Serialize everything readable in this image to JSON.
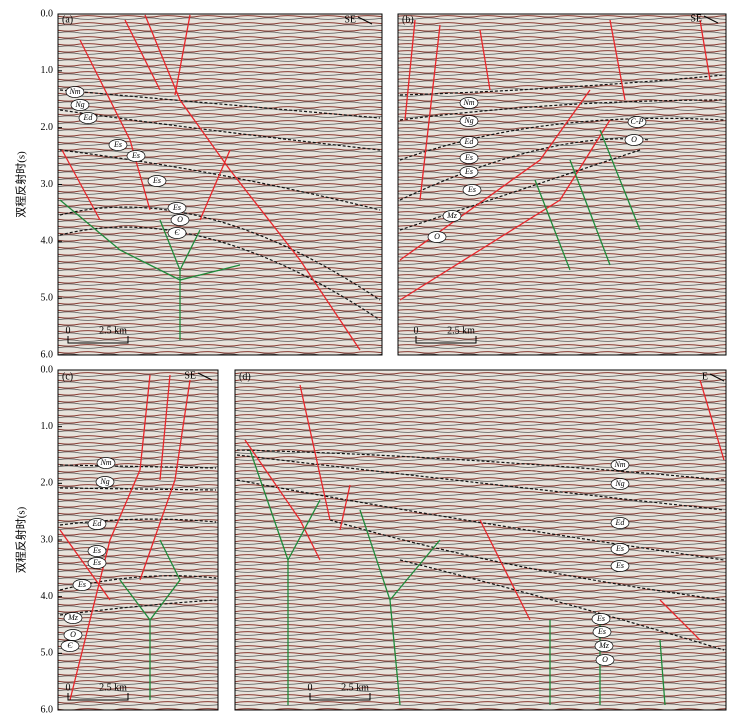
{
  "axes": [
    {
      "label": "双程反射时(s)",
      "ticks": [
        "0.0",
        "1.0",
        "2.0",
        "3.0",
        "4.0",
        "5.0",
        "6.0"
      ]
    },
    {
      "label": "双程反射时(s)",
      "ticks": [
        "0.0",
        "1.0",
        "2.0",
        "3.0",
        "4.0",
        "5.0",
        "6.0"
      ]
    }
  ],
  "panels": [
    {
      "label": "(a)",
      "direction": "SE",
      "scale_zero": "0",
      "scale_length": "2.5 km",
      "formations": [
        "Nm",
        "Ng",
        "Ed",
        "Es",
        "Es",
        "Es",
        "Es",
        "O",
        "Є"
      ]
    },
    {
      "label": "(b)",
      "direction": "SE",
      "scale_zero": "0",
      "scale_length": "2.5 km",
      "formations": [
        "Nm",
        "Ng",
        "Ed",
        "Es",
        "Es",
        "Es",
        "Mz",
        "O",
        "C-P",
        "O"
      ]
    },
    {
      "label": "(c)",
      "direction": "SE",
      "scale_zero": "0",
      "scale_length": "2.5 km",
      "formations": [
        "Nm",
        "Ng",
        "Ed",
        "Es",
        "Es",
        "Es",
        "Mz",
        "O",
        "Є"
      ]
    },
    {
      "label": "(d)",
      "direction": "E",
      "scale_zero": "0",
      "scale_length": "2.5 km",
      "formations": [
        "Nm",
        "Ng",
        "Ed",
        "Es",
        "Es",
        "Es",
        "Es",
        "Mz",
        "O"
      ]
    }
  ]
}
